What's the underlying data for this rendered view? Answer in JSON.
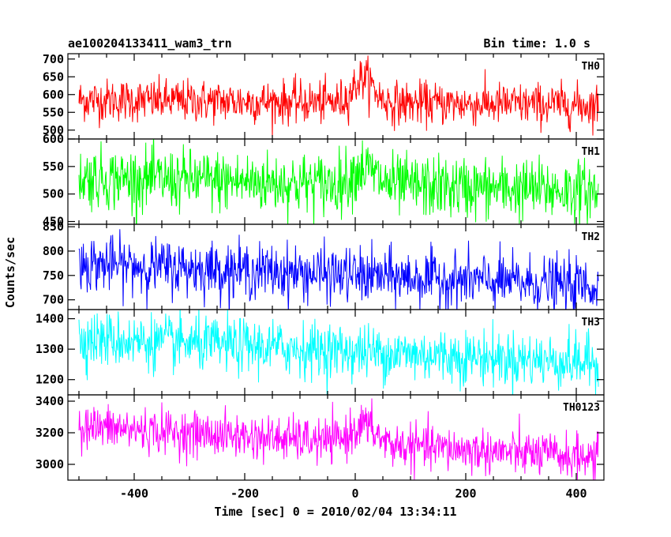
{
  "chart_data": {
    "type": "line",
    "title": "ae100204133411_wam3_trn",
    "subtitle": "Bin time: 1.0 s",
    "xlabel": "Time [sec] 0 = 2010/02/04 13:34:11",
    "ylabel": "Counts/sec",
    "xlim": [
      -520,
      450
    ],
    "x_range": [
      -500,
      440
    ],
    "xticks": [
      -400,
      -200,
      0,
      200,
      400
    ],
    "panels": [
      {
        "name": "TH0",
        "color": "#ff0000",
        "ylim": [
          475,
          715
        ],
        "yticks": [
          500,
          550,
          600,
          650,
          700
        ],
        "base_start": 585,
        "base_end": 570,
        "noise": 30,
        "spike": {
          "x": 15,
          "height": 70,
          "width": 25
        }
      },
      {
        "name": "TH1",
        "color": "#00ff00",
        "ylim": [
          445,
          600
        ],
        "yticks": [
          450,
          500,
          550,
          600
        ],
        "base_start": 530,
        "base_end": 505,
        "noise": 28,
        "spike": {
          "x": 15,
          "height": 30,
          "width": 30
        }
      },
      {
        "name": "TH2",
        "color": "#0000ff",
        "ylim": [
          680,
          855
        ],
        "yticks": [
          700,
          750,
          800,
          850
        ],
        "base_start": 775,
        "base_end": 728,
        "noise": 28,
        "spike": null
      },
      {
        "name": "TH3",
        "color": "#00ffff",
        "ylim": [
          1150,
          1430
        ],
        "yticks": [
          1200,
          1300,
          1400
        ],
        "base_start": 1335,
        "base_end": 1255,
        "noise": 45,
        "spike": null
      },
      {
        "name": "TH0123",
        "color": "#ff00ff",
        "ylim": [
          2900,
          3440
        ],
        "yticks": [
          3000,
          3200,
          3400
        ],
        "base_start": 3240,
        "base_end": 3040,
        "noise": 70,
        "spike": {
          "x": 15,
          "height": 120,
          "width": 30
        }
      }
    ]
  }
}
